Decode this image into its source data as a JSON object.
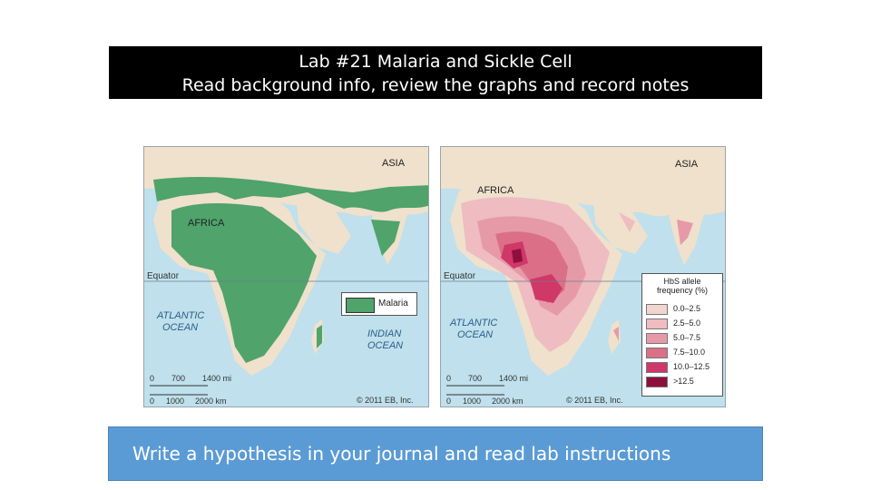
{
  "slide": {
    "title_line1": "Lab #21 Malaria and Sickle Cell",
    "title_line2": "Read background info, review the graphs and record notes",
    "bottom_text": "Write a hypothesis in your journal and read lab instructions"
  },
  "map_malaria": {
    "asia": "ASIA",
    "africa": "AFRICA",
    "equator": "Equator",
    "atlantic": [
      "ATLANTIC",
      "OCEAN"
    ],
    "indian": [
      "INDIAN",
      "OCEAN"
    ],
    "legend_label": "Malaria",
    "scale_mi": [
      "0",
      "700",
      "1400 mi"
    ],
    "scale_km": [
      "0",
      "1000",
      "2000 km"
    ],
    "copyright": "© 2011 EB, Inc.",
    "colors": {
      "malaria": "#4fa36b",
      "land": "#efe1cc",
      "water": "#bfe0ec"
    }
  },
  "map_hbs": {
    "asia": "ASIA",
    "africa": "AFRICA",
    "equator": "Equator",
    "atlantic": [
      "ATLANTIC",
      "OCEAN"
    ],
    "legend_title": [
      "HbS allele",
      "frequency (%)"
    ],
    "legend": [
      {
        "label": "0.0–2.5",
        "color": "#f1d6cf"
      },
      {
        "label": "2.5–5.0",
        "color": "#eebcc1"
      },
      {
        "label": "5.0–7.5",
        "color": "#e69aa8"
      },
      {
        "label": "7.5–10.0",
        "color": "#dc6f88"
      },
      {
        "label": "10.0–12.5",
        "color": "#cf3868"
      },
      {
        "label": ">12.5",
        "color": "#8e0f3c"
      }
    ],
    "scale_mi": [
      "0",
      "700",
      "1400 mi"
    ],
    "scale_km": [
      "0",
      "1000",
      "2000 km"
    ],
    "copyright": "© 2011 EB, Inc."
  }
}
